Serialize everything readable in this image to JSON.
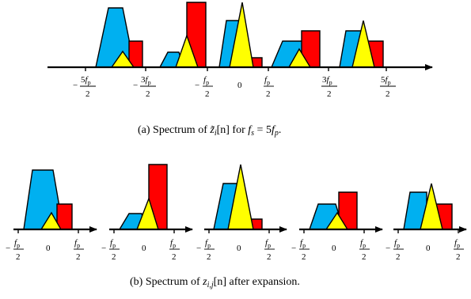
{
  "colors": {
    "blue": "#00b0f0",
    "yellow": "#ffff00",
    "red": "#ff0000",
    "axis": "#000000"
  },
  "top": {
    "ticks": [
      {
        "sign": "−",
        "coef": "5",
        "den": "2"
      },
      {
        "sign": "−",
        "coef": "3",
        "den": "2"
      },
      {
        "sign": "−",
        "coef": "",
        "den": "2"
      },
      {
        "zero": "0"
      },
      {
        "sign": "",
        "coef": "",
        "den": "2"
      },
      {
        "sign": "",
        "coef": "3",
        "den": "2"
      },
      {
        "sign": "",
        "coef": "5",
        "den": "2"
      }
    ],
    "caption": {
      "pre": "(a) Spectrum of ",
      "sym": "z̃",
      "sub": "i",
      "mid": "[n] for ",
      "fs": "f",
      "fs_sub": "s",
      "eq": " = 5",
      "fp": "f",
      "fp_sub": "p",
      "end": "."
    }
  },
  "bottom": {
    "panel_tick_neg": {
      "sign": "−",
      "den": "2"
    },
    "panel_tick_zero": "0",
    "panel_tick_pos": {
      "den": "2"
    },
    "caption": {
      "pre": "(b) Spectrum of ",
      "sym": "z",
      "sub": "i,j",
      "end": "[n] after expansion."
    }
  },
  "fp_symbol": {
    "f": "f",
    "sub": "p"
  }
}
